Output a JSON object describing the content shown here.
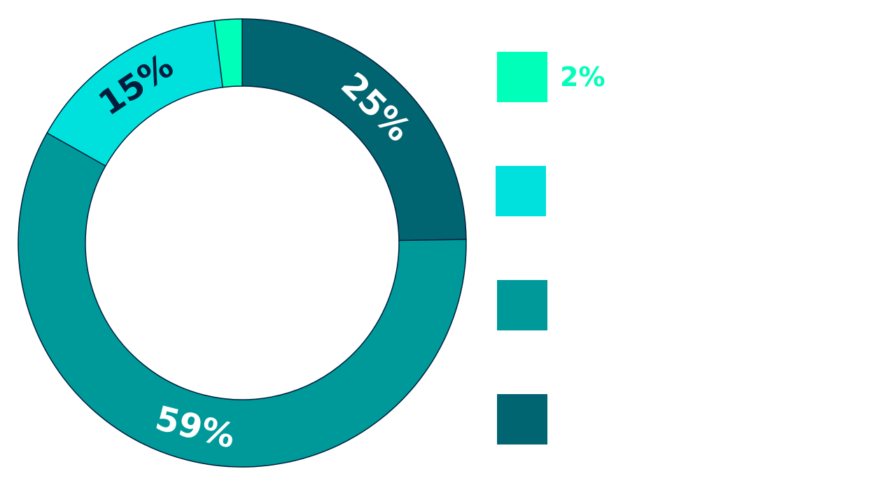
{
  "chart_data": {
    "type": "pie",
    "style": "donut",
    "series": [
      {
        "value": 25,
        "label": "25%",
        "color": "#006570",
        "label_color": "#ffffff"
      },
      {
        "value": 59,
        "label": "59%",
        "color": "#009999",
        "label_color": "#ffffff"
      },
      {
        "value": 15,
        "label": "15%",
        "color": "#00e1dd",
        "label_color": "#001e3c"
      },
      {
        "value": 2,
        "label": "",
        "color": "#00ffb9",
        "label_color": "#001e3c"
      }
    ],
    "legend": [
      {
        "color": "#00ffb9",
        "text": "2%",
        "text_color": "#00ffb9"
      },
      {
        "color": "#00e1dd",
        "text": ""
      },
      {
        "color": "#009999",
        "text": ""
      },
      {
        "color": "#006570",
        "text": ""
      }
    ],
    "legend_position": "right",
    "outline_color": "#001e3c"
  }
}
